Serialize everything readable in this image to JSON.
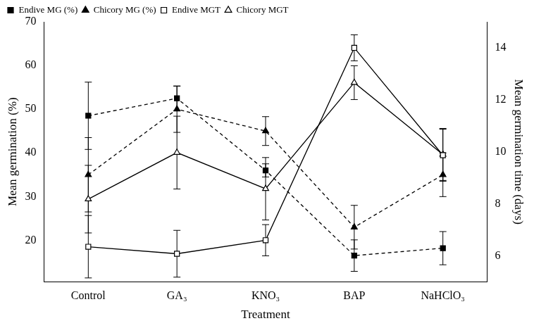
{
  "chart_data": {
    "type": "line",
    "xlabel": "Treatment",
    "ylabel": "Mean germination (%)",
    "y2label": "Mean germination time (days)",
    "categories": [
      "Control",
      "GA₃",
      "KNO₃",
      "BAP",
      "NaHClO₃"
    ],
    "ylim": [
      10.5,
      70
    ],
    "yticks": [
      20,
      30,
      40,
      50,
      60,
      70
    ],
    "y2lim": [
      5,
      15
    ],
    "y2ticks": [
      6,
      8,
      10,
      12,
      14
    ],
    "grid": false,
    "legend": "upper left",
    "series": [
      {
        "name": "Endive MG (%)",
        "color": "#000000",
        "marker": "square",
        "line_style": "dashed",
        "values": [
          48.5,
          52.5,
          36,
          16.5,
          18.2
        ],
        "errors": [
          7.7,
          2.8,
          1.5,
          3.6,
          3.8
        ]
      },
      {
        "name": "Chicory MG (%)",
        "color": "#000000",
        "marker": "triangle",
        "line_style": "dashed",
        "values": [
          35,
          50,
          45,
          23,
          35
        ],
        "errors": [
          8.5,
          5.3,
          3.3,
          5,
          5
        ]
      },
      {
        "name": "Endive MGT",
        "color": "#000000",
        "marker": "open square",
        "line_style": "solid",
        "axis": "y2",
        "values": [
          6.35,
          6.08,
          6.6,
          14.0,
          9.87
        ],
        "errors": [
          1.2,
          0.9,
          0.6,
          0.5,
          1.0
        ]
      },
      {
        "name": "Chicory MGT",
        "color": "#000000",
        "marker": "open triangle",
        "line_style": "solid",
        "axis": "y2",
        "values": [
          8.18,
          9.97,
          8.58,
          12.66,
          9.9
        ],
        "errors": [
          1.3,
          1.4,
          1.2,
          0.65,
          1.0
        ]
      }
    ]
  }
}
